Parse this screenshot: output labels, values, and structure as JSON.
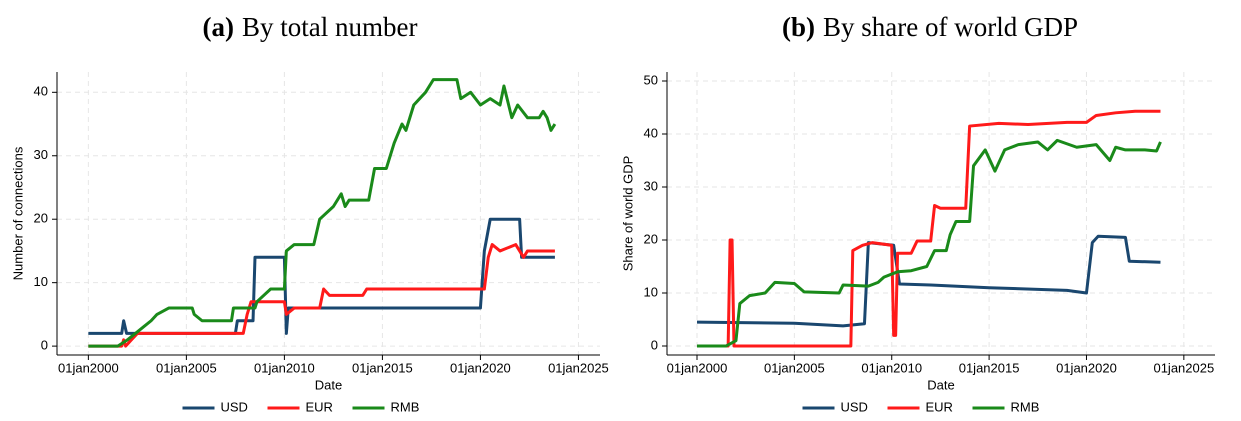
{
  "chart_data": [
    {
      "type": "line",
      "panel_label": "(a)",
      "title": "By total number",
      "x_label": "Date",
      "y_label": "Number of connections",
      "xlim": [
        1998.4,
        2026.1
      ],
      "xticks": [
        {
          "value": 2000,
          "label": "01jan2000"
        },
        {
          "value": 2005,
          "label": "01jan2005"
        },
        {
          "value": 2010,
          "label": "01jan2010"
        },
        {
          "value": 2015,
          "label": "01jan2015"
        },
        {
          "value": 2020,
          "label": "01jan2020"
        },
        {
          "value": 2025,
          "label": "01jan2025"
        }
      ],
      "ylim": [
        -1.4,
        43.2
      ],
      "yticks": [
        0,
        10,
        20,
        30,
        40
      ],
      "grid": true,
      "legend": "bottom",
      "series": [
        {
          "name": "USD",
          "color": "#1a476f",
          "x": [
            2000,
            2001.7,
            2001.8,
            2001.95,
            2007.5,
            2007.6,
            2008.4,
            2008.5,
            2010,
            2010.1,
            2010.2,
            2020,
            2020.2,
            2020.5,
            2022,
            2022.1,
            2023.8
          ],
          "values": [
            2,
            2,
            4,
            2,
            2,
            4,
            4,
            14,
            14,
            2,
            6,
            6,
            15,
            20,
            20,
            14,
            14
          ]
        },
        {
          "name": "EUR",
          "color": "#ff1a1a",
          "x": [
            2000,
            2001.7,
            2001.8,
            2001.9,
            2002.2,
            2002.5,
            2007.9,
            2008.1,
            2008.3,
            2010,
            2010.1,
            2010.5,
            2011.8,
            2012,
            2012.3,
            2014,
            2014.2,
            2020.2,
            2020.4,
            2020.6,
            2021,
            2021.8,
            2022.2,
            2022.4,
            2023.8
          ],
          "values": [
            0,
            0,
            1,
            0,
            1,
            2,
            2,
            5,
            7,
            7,
            5,
            6,
            6,
            9,
            8,
            8,
            9,
            9,
            14,
            16,
            15,
            16,
            14,
            15,
            15
          ]
        },
        {
          "name": "RMB",
          "color": "#1a8a1a",
          "x": [
            2000,
            2001.5,
            2002,
            2002.4,
            2002.8,
            2003.2,
            2003.5,
            2004.1,
            2005.3,
            2005.4,
            2005.8,
            2007.3,
            2007.4,
            2008.5,
            2008.6,
            2009.3,
            2010,
            2010.1,
            2010.5,
            2011.5,
            2011.8,
            2012.5,
            2012.9,
            2013.1,
            2013.3,
            2014.3,
            2014.6,
            2015.2,
            2015.6,
            2016,
            2016.2,
            2016.6,
            2017.2,
            2017.6,
            2018.8,
            2019,
            2019.5,
            2020,
            2020.5,
            2021,
            2021.2,
            2021.6,
            2021.9,
            2022.4,
            2023,
            2023.2,
            2023.4,
            2023.6,
            2023.8
          ],
          "values": [
            0,
            0,
            1,
            2,
            3,
            4,
            5,
            6,
            6,
            5,
            4,
            4,
            6,
            6,
            7,
            9,
            9,
            15,
            16,
            16,
            20,
            22,
            24,
            22,
            23,
            23,
            28,
            28,
            32,
            35,
            34,
            38,
            40,
            42,
            42,
            39,
            40,
            38,
            39,
            38,
            41,
            36,
            38,
            36,
            36,
            37,
            36,
            34,
            35
          ]
        }
      ]
    },
    {
      "type": "line",
      "panel_label": "(b)",
      "title": "By share of world GDP",
      "x_label": "Date",
      "y_label": "Share of world GDP",
      "xlim": [
        1998.46,
        2026.6
      ],
      "xticks": [
        {
          "value": 2000,
          "label": "01jan2000"
        },
        {
          "value": 2005,
          "label": "01jan2005"
        },
        {
          "value": 2010,
          "label": "01jan2010"
        },
        {
          "value": 2015,
          "label": "01jan2015"
        },
        {
          "value": 2020,
          "label": "01jan2020"
        },
        {
          "value": 2025,
          "label": "01jan2025"
        }
      ],
      "ylim": [
        -1.7,
        51.7
      ],
      "yticks": [
        0,
        10,
        20,
        30,
        40,
        50
      ],
      "grid": true,
      "legend": "bottom",
      "series": [
        {
          "name": "USD",
          "color": "#1a476f",
          "x": [
            2000,
            2005,
            2007.5,
            2008.6,
            2008.8,
            2010.1,
            2010.4,
            2012,
            2015,
            2019,
            2020,
            2020.3,
            2020.6,
            2022,
            2022.2,
            2023.8
          ],
          "values": [
            4.5,
            4.3,
            3.8,
            4.2,
            19.5,
            19,
            11.7,
            11.5,
            11,
            10.5,
            10,
            19.5,
            20.7,
            20.5,
            16,
            15.8
          ]
        },
        {
          "name": "EUR",
          "color": "#ff1a1a",
          "x": [
            2000,
            2001.6,
            2001.7,
            2001.8,
            2001.9,
            2007.9,
            2008,
            2008.5,
            2009,
            2010,
            2010.1,
            2010.2,
            2010.3,
            2011,
            2011.3,
            2012,
            2012.2,
            2012.5,
            2013.8,
            2014,
            2015.5,
            2017,
            2019,
            2020,
            2020.5,
            2021.5,
            2022.5,
            2023.8
          ],
          "values": [
            0,
            0,
            20,
            20,
            0,
            0,
            18,
            19,
            19.5,
            19,
            2,
            2,
            17.5,
            17.5,
            19.8,
            19.8,
            26.5,
            26,
            26,
            41.5,
            42,
            41.8,
            42.2,
            42.2,
            43.5,
            44,
            44.3,
            44.3
          ]
        },
        {
          "name": "RMB",
          "color": "#1a8a1a",
          "x": [
            2000,
            2001.5,
            2002,
            2002.2,
            2002.7,
            2003.5,
            2004,
            2005,
            2005.5,
            2007.3,
            2007.5,
            2008.8,
            2009.3,
            2009.6,
            2010.3,
            2011,
            2011.8,
            2012.2,
            2012.8,
            2013,
            2013.3,
            2014,
            2014.2,
            2014.8,
            2015.3,
            2015.8,
            2016.5,
            2017.5,
            2018,
            2018.5,
            2019.5,
            2020.5,
            2021.2,
            2021.5,
            2022,
            2023,
            2023.6,
            2023.8
          ],
          "values": [
            0,
            0,
            1,
            8,
            9.5,
            10,
            12,
            11.8,
            10.2,
            10,
            11.5,
            11.3,
            12,
            13,
            14,
            14.2,
            15,
            18,
            18,
            21,
            23.5,
            23.5,
            34,
            37,
            33,
            37,
            38,
            38.5,
            37,
            38.8,
            37.5,
            38,
            35,
            37.5,
            37,
            37,
            36.8,
            38.5
          ]
        }
      ]
    }
  ]
}
